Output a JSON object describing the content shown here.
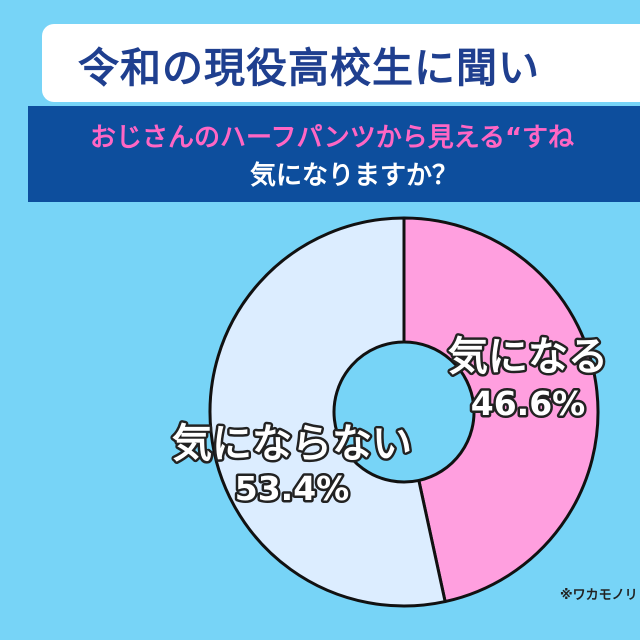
{
  "header": {
    "title": "令和の現役高校生に聞い",
    "question_line1": "おじさんのハーフパンツから見える“すね",
    "question_line2": "気になりますか？"
  },
  "source": "※ワカモノリ",
  "colors": {
    "background": "#77d4f7",
    "title_text": "#1f3f8f",
    "question_band": "#0d4e9d",
    "question_highlight": "#ff66c4",
    "slice_kininaru": "#ff9fdf",
    "slice_kininaranai": "#dcedff"
  },
  "chart_data": {
    "type": "pie",
    "variant": "donut",
    "title": "",
    "slices": [
      {
        "label": "気になる",
        "value": 46.6,
        "value_label": "46.6%",
        "color": "#ff9fdf"
      },
      {
        "label": "気にならない",
        "value": 53.4,
        "value_label": "53.4%",
        "color": "#dcedff"
      }
    ],
    "start": "12 o'clock",
    "direction": "clockwise",
    "legend": "none"
  }
}
